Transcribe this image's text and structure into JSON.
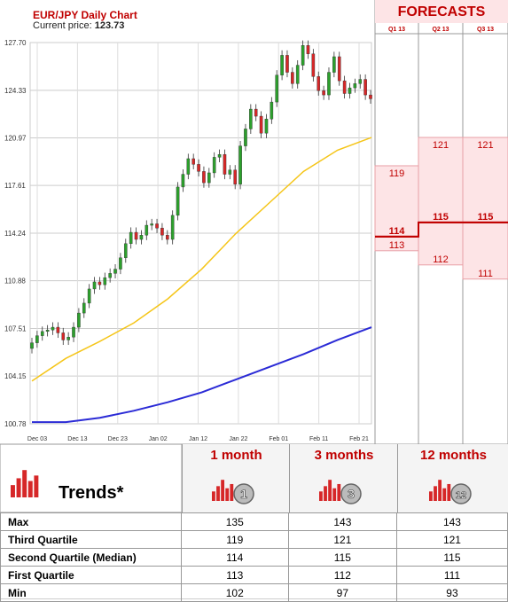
{
  "header": {
    "title": "EUR/JPY Daily Chart",
    "current_label": "Current price:",
    "current_value": "123.73"
  },
  "forecasts": {
    "title": "FORECASTS",
    "quarters": [
      {
        "label": "Q1 13",
        "q3": 119,
        "median": 114,
        "q1": 113
      },
      {
        "label": "Q2 13",
        "q3": 121,
        "median": 115,
        "q1": 112
      },
      {
        "label": "Q3 13",
        "q3": 121,
        "median": 115,
        "q1": 111
      }
    ]
  },
  "table": {
    "trends_label": "Trends*",
    "columns": [
      {
        "title": "1 month",
        "badge": "1"
      },
      {
        "title": "3 months",
        "badge": "3"
      },
      {
        "title": "12 months",
        "badge": "12"
      }
    ],
    "rows": [
      {
        "label": "Max",
        "values": [
          "135",
          "143",
          "143"
        ]
      },
      {
        "label": "Third Quartile",
        "values": [
          "119",
          "121",
          "121"
        ]
      },
      {
        "label": "Second Quartile (Median)",
        "values": [
          "114",
          "115",
          "115"
        ]
      },
      {
        "label": "First Quartile",
        "values": [
          "113",
          "112",
          "111"
        ]
      },
      {
        "label": "Min",
        "values": [
          "102",
          "97",
          "93"
        ]
      }
    ]
  },
  "chart_data": {
    "type": "candlestick",
    "y_ticks": [
      "127.70",
      "124.33",
      "120.97",
      "117.61",
      "114.24",
      "110.88",
      "107.51",
      "104.15",
      "100.78"
    ],
    "ylim": [
      100.78,
      127.7
    ],
    "x_ticks": [
      "Dec 03",
      "Dec 13",
      "Dec 23",
      "Jan 02",
      "Jan 12",
      "Jan 22",
      "Feb 01",
      "Feb 11",
      "Feb 21"
    ],
    "close": [
      106.5,
      107.0,
      107.3,
      107.4,
      107.6,
      107.2,
      106.7,
      106.9,
      107.6,
      108.6,
      109.3,
      110.3,
      110.8,
      110.6,
      111.1,
      111.4,
      111.7,
      112.5,
      113.5,
      114.3,
      113.8,
      114.1,
      114.8,
      114.9,
      114.6,
      114.1,
      113.8,
      115.5,
      117.5,
      118.4,
      119.5,
      119.1,
      118.6,
      117.8,
      118.5,
      119.6,
      119.8,
      118.4,
      118.7,
      117.7,
      120.4,
      121.6,
      123.0,
      122.5,
      121.3,
      122.3,
      123.5,
      125.4,
      126.8,
      125.6,
      124.8,
      126.1,
      127.5,
      126.9,
      125.3,
      124.3,
      124.0,
      125.6,
      126.7,
      125.0,
      124.1,
      124.5,
      124.8,
      125.1,
      124.0,
      123.73
    ],
    "ma_fast": [
      103.8,
      105.4,
      106.6,
      107.9,
      109.6,
      111.7,
      114.2,
      116.4,
      118.6,
      120.1,
      121.0
    ],
    "ma_slow": [
      100.9,
      100.9,
      101.2,
      101.7,
      102.3,
      103.0,
      103.9,
      104.8,
      105.7,
      106.7,
      107.6
    ],
    "colors": {
      "up": "#2ca02c",
      "down": "#d62728",
      "ma_fast": "#f5c518",
      "ma_slow": "#2b2bd6",
      "forecast": "#c00000"
    }
  }
}
